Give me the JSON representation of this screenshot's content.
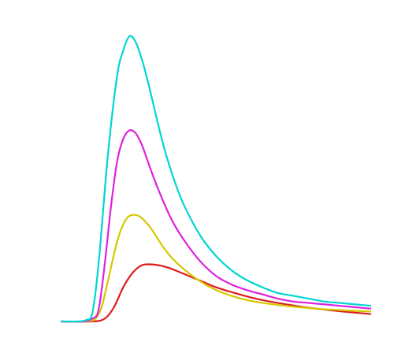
{
  "chart_data": {
    "type": "line",
    "title": "",
    "xlabel": "",
    "ylabel": "",
    "grid": false,
    "legend": "none",
    "xlim": [
      0,
      10
    ],
    "ylim": [
      0,
      1
    ],
    "series": [
      {
        "color": "#00d5d5",
        "x": [
          0.0,
          0.5,
          0.8,
          1.0,
          1.2,
          1.5,
          1.8,
          2.0,
          2.2,
          2.4,
          2.6,
          2.8,
          3.0,
          3.2,
          3.4,
          3.7,
          4.0,
          4.5,
          5.0,
          5.5,
          6.0,
          6.5,
          7.0,
          7.5,
          8.0,
          8.5,
          9.0,
          9.5,
          10.0
        ],
        "y": [
          0.0,
          0.0,
          0.005,
          0.03,
          0.2,
          0.58,
          0.86,
          0.95,
          1.0,
          0.98,
          0.92,
          0.84,
          0.75,
          0.66,
          0.58,
          0.48,
          0.4,
          0.3,
          0.23,
          0.18,
          0.145,
          0.12,
          0.1,
          0.09,
          0.08,
          0.07,
          0.065,
          0.06,
          0.055
        ]
      },
      {
        "color": "#dd22dd",
        "x": [
          0.0,
          0.7,
          1.0,
          1.2,
          1.4,
          1.6,
          1.8,
          2.0,
          2.2,
          2.4,
          2.6,
          2.8,
          3.0,
          3.3,
          3.6,
          4.0,
          4.5,
          5.0,
          5.5,
          6.0,
          6.5,
          7.0,
          7.5,
          8.0,
          8.5,
          9.0,
          9.5,
          10.0
        ],
        "y": [
          0.0,
          0.0,
          0.01,
          0.04,
          0.2,
          0.4,
          0.56,
          0.64,
          0.67,
          0.66,
          0.62,
          0.56,
          0.5,
          0.42,
          0.35,
          0.28,
          0.21,
          0.16,
          0.13,
          0.11,
          0.095,
          0.08,
          0.07,
          0.065,
          0.06,
          0.055,
          0.05,
          0.045
        ]
      },
      {
        "color": "#d4c800",
        "x": [
          0.0,
          0.8,
          1.1,
          1.3,
          1.5,
          1.8,
          2.0,
          2.2,
          2.5,
          2.8,
          3.0,
          3.3,
          3.6,
          4.0,
          4.5,
          5.0,
          5.5,
          6.0,
          6.5,
          7.0,
          7.5,
          8.0,
          8.5,
          9.0,
          9.5,
          10.0
        ],
        "y": [
          0.0,
          0.0,
          0.01,
          0.05,
          0.14,
          0.28,
          0.34,
          0.37,
          0.37,
          0.34,
          0.31,
          0.26,
          0.22,
          0.18,
          0.14,
          0.11,
          0.09,
          0.075,
          0.065,
          0.058,
          0.052,
          0.047,
          0.043,
          0.04,
          0.037,
          0.035
        ]
      },
      {
        "color": "#dd1c1c",
        "x": [
          0.0,
          1.0,
          1.4,
          1.7,
          2.0,
          2.3,
          2.6,
          2.9,
          3.2,
          3.5,
          3.8,
          4.2,
          4.6,
          5.0,
          5.5,
          6.0,
          6.5,
          7.0,
          7.5,
          8.0,
          8.5,
          9.0,
          9.5,
          10.0
        ],
        "y": [
          0.0,
          0.0,
          0.01,
          0.05,
          0.12,
          0.17,
          0.197,
          0.2,
          0.196,
          0.187,
          0.174,
          0.156,
          0.138,
          0.12,
          0.103,
          0.088,
          0.075,
          0.065,
          0.056,
          0.048,
          0.042,
          0.036,
          0.031,
          0.026
        ]
      }
    ]
  }
}
